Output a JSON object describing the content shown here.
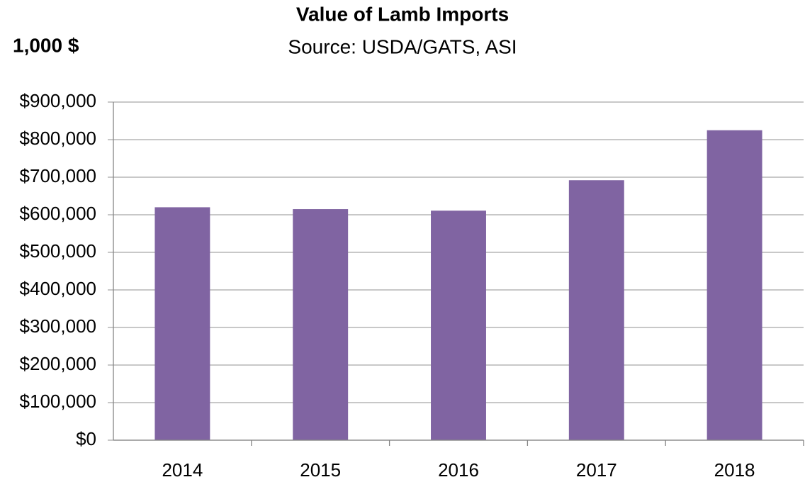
{
  "chart_data": {
    "type": "bar",
    "title": "Value of Lamb Imports",
    "subtitle": "Source: USDA/GATS, ASI",
    "y_axis_label": "1,000 $",
    "categories": [
      "2014",
      "2015",
      "2016",
      "2017",
      "2018"
    ],
    "values": [
      620000,
      615000,
      611000,
      692000,
      825000
    ],
    "color": "#8064a2",
    "ylim": [
      0,
      900000
    ],
    "yticks": [
      {
        "value": 0,
        "label": "$0"
      },
      {
        "value": 100000,
        "label": "$100,000"
      },
      {
        "value": 200000,
        "label": "$200,000"
      },
      {
        "value": 300000,
        "label": "$300,000"
      },
      {
        "value": 400000,
        "label": "$400,000"
      },
      {
        "value": 500000,
        "label": "$500,000"
      },
      {
        "value": 600000,
        "label": "$600,000"
      },
      {
        "value": 700000,
        "label": "$700,000"
      },
      {
        "value": 800000,
        "label": "$800,000"
      },
      {
        "value": 900000,
        "label": "$900,000"
      }
    ],
    "grid": true
  }
}
